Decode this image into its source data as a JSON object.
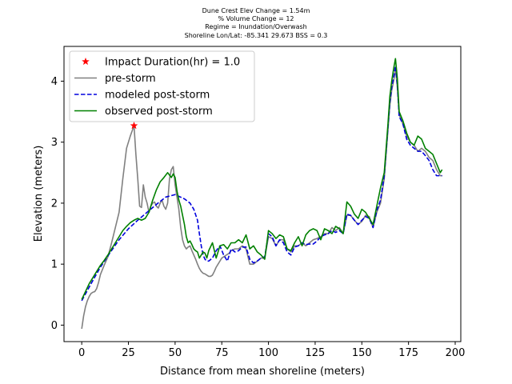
{
  "chart_data": {
    "type": "line",
    "title_lines": [
      "Dune Crest Elev Change = 1.54m",
      "% Volume Change = 12",
      "Regime = Inundation/Overwash",
      "Shoreline Lon/Lat: -85.341 29.673   BSS = 0.3"
    ],
    "xlabel": "Distance from mean shoreline (meters)",
    "ylabel": "Elevation (meters)",
    "xlim": [
      -9.5,
      203
    ],
    "ylim": [
      -0.27,
      4.57
    ],
    "xticks": [
      0,
      25,
      50,
      75,
      100,
      125,
      150,
      175,
      200
    ],
    "yticks": [
      0,
      1,
      2,
      3,
      4
    ],
    "legend_position": "upper left",
    "grid": false,
    "series": [
      {
        "name": "Impact Duration(hr) = 1.0",
        "style": "marker",
        "color": "#ff0000",
        "x": [
          28
        ],
        "y": [
          3.27
        ]
      },
      {
        "name": "pre-storm",
        "style": "solid",
        "color": "#808080",
        "x": [
          0,
          1,
          2,
          3,
          4,
          5,
          6,
          7,
          8,
          9,
          10,
          12,
          14,
          16,
          18,
          20,
          22,
          24,
          26,
          28,
          29,
          30,
          31,
          32,
          33,
          34,
          35,
          36,
          37,
          38,
          39,
          40,
          41,
          42,
          43,
          44,
          45,
          46,
          47,
          48,
          49,
          50,
          51,
          52,
          53,
          54,
          55,
          56,
          57,
          58,
          59,
          60,
          61,
          62,
          63,
          64,
          65,
          66,
          67,
          68,
          69,
          70,
          71,
          72,
          73,
          74,
          75,
          76,
          77,
          78,
          79,
          80,
          82,
          84,
          86,
          88,
          90,
          92,
          94,
          96,
          98,
          100,
          102,
          104,
          106,
          108,
          110,
          112,
          114,
          116,
          118,
          120,
          122,
          124,
          126,
          128,
          130,
          132,
          134,
          136,
          138,
          140,
          142,
          144,
          146,
          148,
          150,
          152,
          154,
          156,
          158,
          160,
          162,
          163,
          164,
          165,
          166,
          167,
          168,
          169,
          170,
          172,
          174,
          176,
          178,
          180,
          182,
          184,
          186,
          188,
          190,
          192,
          193
        ],
        "y": [
          -0.06,
          0.15,
          0.3,
          0.4,
          0.47,
          0.52,
          0.54,
          0.55,
          0.6,
          0.7,
          0.83,
          0.98,
          1.12,
          1.35,
          1.6,
          1.85,
          2.4,
          2.9,
          3.1,
          3.27,
          2.8,
          2.4,
          1.95,
          1.93,
          2.3,
          2.1,
          2.0,
          1.85,
          1.95,
          2.0,
          2.02,
          1.95,
          1.92,
          2.0,
          2.05,
          1.95,
          1.9,
          2.0,
          2.4,
          2.55,
          2.6,
          2.3,
          2.1,
          1.9,
          1.6,
          1.4,
          1.3,
          1.25,
          1.28,
          1.3,
          1.22,
          1.15,
          1.08,
          1.0,
          0.93,
          0.88,
          0.85,
          0.84,
          0.82,
          0.8,
          0.8,
          0.82,
          0.88,
          0.95,
          1.0,
          1.05,
          1.1,
          1.12,
          1.14,
          1.16,
          1.18,
          1.22,
          1.25,
          1.25,
          1.3,
          1.25,
          1.0,
          1.0,
          1.05,
          1.1,
          1.1,
          1.45,
          1.42,
          1.3,
          1.4,
          1.4,
          1.25,
          1.2,
          1.3,
          1.3,
          1.35,
          1.3,
          1.35,
          1.4,
          1.42,
          1.45,
          1.5,
          1.5,
          1.6,
          1.55,
          1.6,
          1.5,
          1.8,
          1.8,
          1.72,
          1.65,
          1.7,
          1.8,
          1.78,
          1.6,
          1.85,
          2.0,
          2.4,
          2.8,
          3.2,
          3.6,
          3.85,
          4.0,
          4.2,
          3.9,
          3.45,
          3.3,
          3.1,
          3.0,
          2.95,
          2.85,
          2.9,
          2.85,
          2.75,
          2.7,
          2.55,
          2.45,
          2.45
        ]
      },
      {
        "name": "modeled post-storm",
        "style": "dashed",
        "color": "#0000dd",
        "x": [
          0,
          5,
          10,
          15,
          20,
          25,
          30,
          35,
          40,
          45,
          50,
          55,
          58,
          60,
          62,
          63,
          64,
          65,
          66,
          67,
          68,
          70,
          72,
          74,
          76,
          78,
          80,
          82,
          84,
          86,
          88,
          90,
          92,
          94,
          96,
          98,
          100,
          102,
          104,
          106,
          108,
          110,
          112,
          114,
          116,
          118,
          120,
          122,
          124,
          126,
          128,
          130,
          132,
          134,
          136,
          138,
          140,
          142,
          144,
          146,
          148,
          150,
          152,
          154,
          156,
          158,
          160,
          162,
          163,
          164,
          165,
          166,
          167,
          168,
          169,
          170,
          172,
          174,
          176,
          178,
          180,
          182,
          184,
          186,
          188,
          190,
          192,
          193
        ],
        "y": [
          0.4,
          0.68,
          0.95,
          1.18,
          1.4,
          1.58,
          1.72,
          1.85,
          1.98,
          2.1,
          2.14,
          2.07,
          2.0,
          1.9,
          1.72,
          1.5,
          1.3,
          1.15,
          1.08,
          1.05,
          1.05,
          1.1,
          1.22,
          1.3,
          1.15,
          1.05,
          1.25,
          1.2,
          1.22,
          1.28,
          1.28,
          1.08,
          1.02,
          1.05,
          1.1,
          1.12,
          1.5,
          1.45,
          1.3,
          1.4,
          1.35,
          1.2,
          1.15,
          1.28,
          1.3,
          1.35,
          1.32,
          1.33,
          1.33,
          1.38,
          1.45,
          1.48,
          1.5,
          1.55,
          1.52,
          1.55,
          1.5,
          1.82,
          1.8,
          1.72,
          1.65,
          1.72,
          1.78,
          1.75,
          1.6,
          1.88,
          2.05,
          2.45,
          2.85,
          3.25,
          3.65,
          3.9,
          4.05,
          4.25,
          3.95,
          3.42,
          3.3,
          3.05,
          2.95,
          2.9,
          2.85,
          2.85,
          2.78,
          2.7,
          2.55,
          2.45,
          2.45,
          2.45
        ]
      },
      {
        "name": "observed post-storm",
        "style": "solid",
        "color": "#008000",
        "x": [
          0,
          2,
          4,
          6,
          8,
          10,
          12,
          14,
          16,
          18,
          20,
          22,
          24,
          26,
          28,
          30,
          32,
          34,
          36,
          38,
          40,
          42,
          44,
          46,
          48,
          49,
          50,
          51,
          52,
          53,
          54,
          55,
          56,
          57,
          58,
          59,
          60,
          61,
          62,
          63,
          64,
          65,
          66,
          67,
          68,
          70,
          72,
          74,
          76,
          78,
          80,
          82,
          84,
          86,
          88,
          90,
          92,
          94,
          96,
          98,
          100,
          102,
          104,
          106,
          108,
          110,
          112,
          114,
          116,
          118,
          120,
          122,
          124,
          126,
          128,
          130,
          132,
          134,
          136,
          138,
          140,
          142,
          144,
          146,
          148,
          150,
          152,
          154,
          156,
          158,
          160,
          162,
          163,
          164,
          165,
          166,
          167,
          168,
          169,
          170,
          172,
          174,
          176,
          178,
          180,
          182,
          184,
          186,
          188,
          190,
          192,
          193
        ],
        "y": [
          0.42,
          0.55,
          0.68,
          0.78,
          0.88,
          0.98,
          1.06,
          1.15,
          1.25,
          1.35,
          1.45,
          1.55,
          1.62,
          1.68,
          1.72,
          1.75,
          1.72,
          1.75,
          1.85,
          2.05,
          2.22,
          2.35,
          2.42,
          2.5,
          2.42,
          2.48,
          2.42,
          2.2,
          2.05,
          1.95,
          1.8,
          1.65,
          1.45,
          1.35,
          1.38,
          1.32,
          1.25,
          1.22,
          1.2,
          1.1,
          1.15,
          1.2,
          1.18,
          1.1,
          1.22,
          1.35,
          1.1,
          1.3,
          1.32,
          1.25,
          1.35,
          1.35,
          1.4,
          1.35,
          1.48,
          1.25,
          1.3,
          1.2,
          1.15,
          1.08,
          1.55,
          1.5,
          1.42,
          1.48,
          1.45,
          1.25,
          1.22,
          1.35,
          1.45,
          1.3,
          1.48,
          1.55,
          1.58,
          1.55,
          1.4,
          1.58,
          1.55,
          1.5,
          1.62,
          1.58,
          1.5,
          2.02,
          1.95,
          1.82,
          1.75,
          1.9,
          1.85,
          1.75,
          1.65,
          1.95,
          2.25,
          2.5,
          2.9,
          3.3,
          3.75,
          4.0,
          4.2,
          4.37,
          4.05,
          3.5,
          3.35,
          3.15,
          3.0,
          2.95,
          3.1,
          3.05,
          2.9,
          2.85,
          2.8,
          2.65,
          2.5,
          2.55
        ]
      }
    ]
  }
}
